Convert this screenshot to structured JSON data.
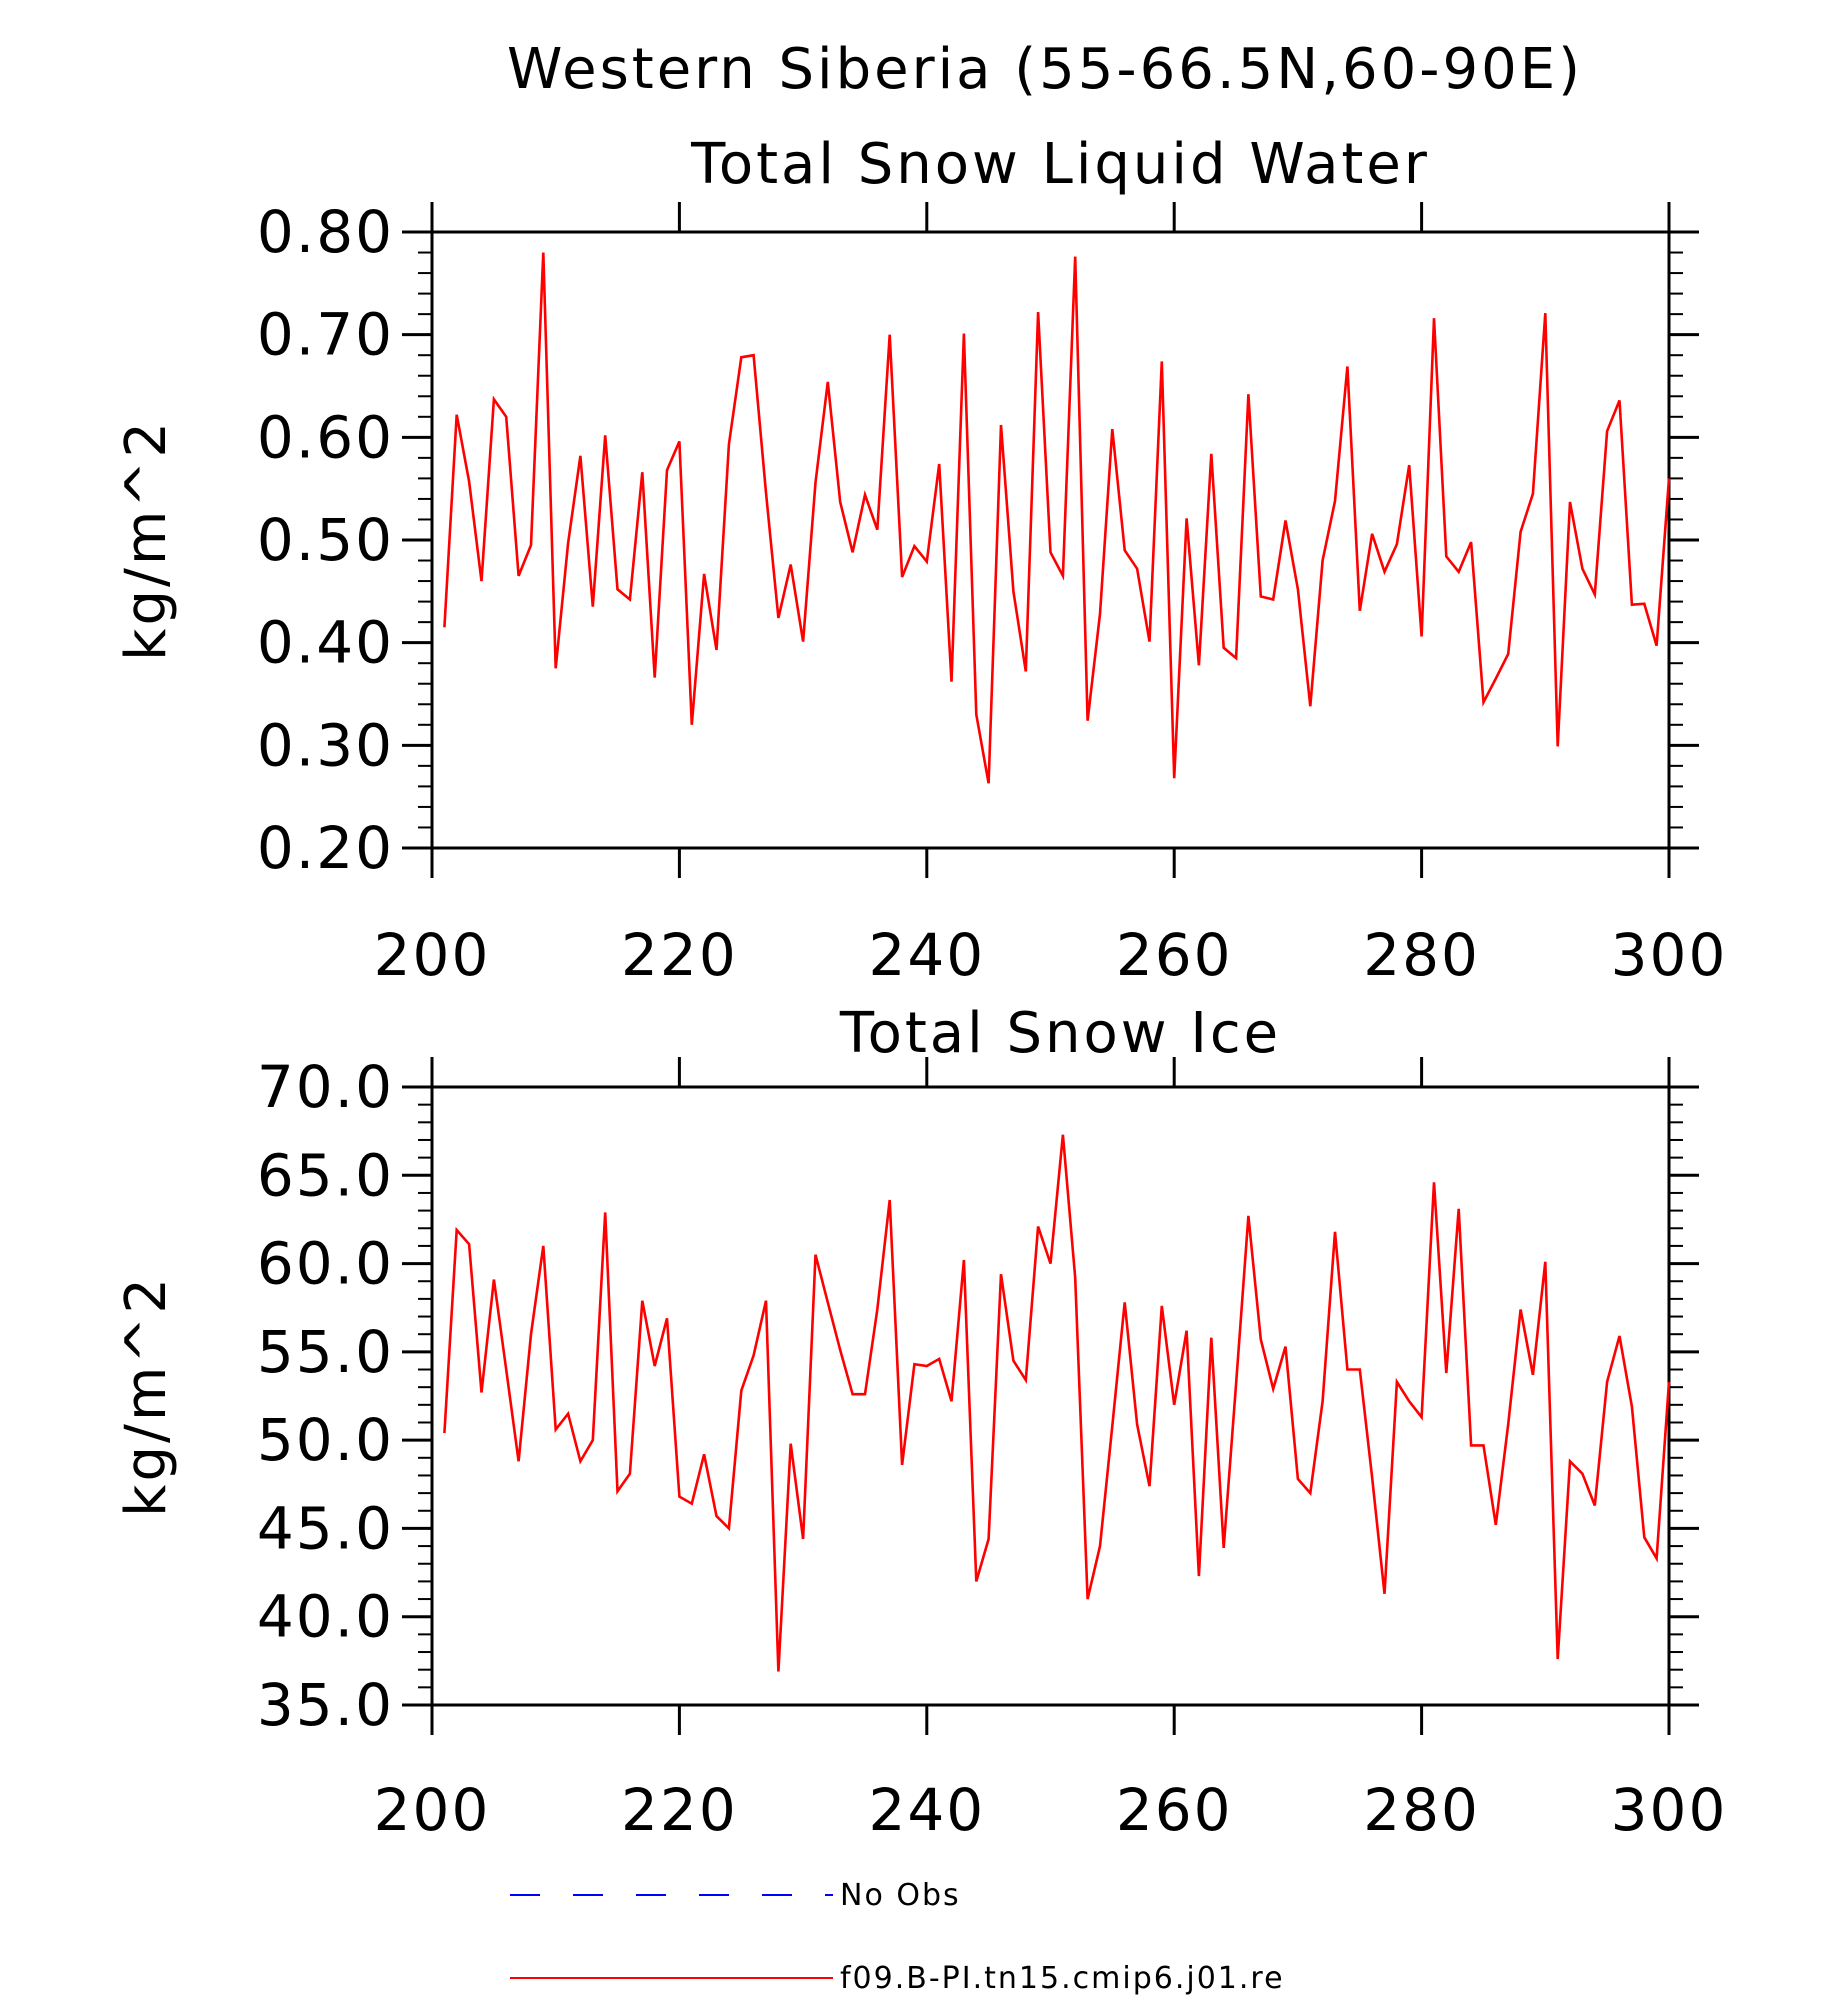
{
  "figure_title": "Western Siberia (55-66.5N,60-90E)",
  "chart_data": [
    {
      "type": "line",
      "title": "Total Snow Liquid Water",
      "xlabel": "",
      "ylabel": "kg/m^2",
      "xlim": [
        200,
        300
      ],
      "ylim": [
        0.2,
        0.8
      ],
      "x_ticks": [
        "200",
        "220",
        "240",
        "260",
        "280",
        "300"
      ],
      "y_ticks": [
        "0.20",
        "0.30",
        "0.40",
        "0.50",
        "0.60",
        "0.70",
        "0.80"
      ],
      "x_start": 201,
      "series": [
        {
          "name": "f09.B-PI.tn15.cmip6.j01.re",
          "color": "#ff0000",
          "values": [
            0.415,
            0.622,
            0.557,
            0.46,
            0.637,
            0.62,
            0.465,
            0.495,
            0.78,
            0.375,
            0.497,
            0.582,
            0.435,
            0.602,
            0.452,
            0.442,
            0.566,
            0.366,
            0.568,
            0.596,
            0.32,
            0.467,
            0.393,
            0.593,
            0.678,
            0.68,
            0.546,
            0.424,
            0.476,
            0.401,
            0.556,
            0.654,
            0.537,
            0.488,
            0.544,
            0.51,
            0.7,
            0.464,
            0.494,
            0.479,
            0.574,
            0.362,
            0.701,
            0.33,
            0.263,
            0.612,
            0.45,
            0.372,
            0.722,
            0.488,
            0.465,
            0.776,
            0.324,
            0.428,
            0.608,
            0.49,
            0.472,
            0.401,
            0.674,
            0.268,
            0.521,
            0.378,
            0.584,
            0.395,
            0.385,
            0.642,
            0.445,
            0.442,
            0.519,
            0.452,
            0.338,
            0.48,
            0.538,
            0.669,
            0.431,
            0.506,
            0.469,
            0.496,
            0.573,
            0.406,
            0.716,
            0.484,
            0.469,
            0.498,
            0.342,
            0.365,
            0.389,
            0.508,
            0.545,
            0.721,
            0.299,
            0.537,
            0.472,
            0.447,
            0.606,
            0.636,
            0.437,
            0.438,
            0.397,
            0.56
          ]
        }
      ]
    },
    {
      "type": "line",
      "title": "Total Snow Ice",
      "xlabel": "",
      "ylabel": "kg/m^2",
      "xlim": [
        200,
        300
      ],
      "ylim": [
        35.0,
        70.0
      ],
      "x_ticks": [
        "200",
        "220",
        "240",
        "260",
        "280",
        "300"
      ],
      "y_ticks": [
        "35.0",
        "40.0",
        "45.0",
        "50.0",
        "55.0",
        "60.0",
        "65.0",
        "70.0"
      ],
      "x_start": 201,
      "series": [
        {
          "name": "f09.B-PI.tn15.cmip6.j01.re",
          "color": "#ff0000",
          "values": [
            50.4,
            61.9,
            61.1,
            52.7,
            59.1,
            54.0,
            48.8,
            56.0,
            61.0,
            50.6,
            51.5,
            48.8,
            50.0,
            62.9,
            47.1,
            48.1,
            57.9,
            54.2,
            56.9,
            46.8,
            46.4,
            49.2,
            45.7,
            45.0,
            52.8,
            54.8,
            57.9,
            36.9,
            49.8,
            44.4,
            60.5,
            57.8,
            55.1,
            52.6,
            52.6,
            57.4,
            63.6,
            48.6,
            54.3,
            54.2,
            54.6,
            52.2,
            60.2,
            42.0,
            44.4,
            59.4,
            54.5,
            53.4,
            62.1,
            60.0,
            67.3,
            59.2,
            41.0,
            44.0,
            50.8,
            57.8,
            50.9,
            47.4,
            57.6,
            52.0,
            56.2,
            42.3,
            55.8,
            43.9,
            53.2,
            62.7,
            55.7,
            52.9,
            55.3,
            47.8,
            47.0,
            52.2,
            61.8,
            54.0,
            54.0,
            47.9,
            41.3,
            53.3,
            52.2,
            51.3,
            64.6,
            53.8,
            63.1,
            49.7,
            49.7,
            45.2,
            50.9,
            57.4,
            53.7,
            60.1,
            37.6,
            48.8,
            48.1,
            46.3,
            53.3,
            55.9,
            51.9,
            44.5,
            43.3,
            53.3
          ]
        }
      ]
    }
  ],
  "legend": [
    {
      "label": "No Obs",
      "color": "#0000ff",
      "dashed": true
    },
    {
      "label": "f09.B-PI.tn15.cmip6.j01.re",
      "color": "#ff0000",
      "dashed": false
    }
  ]
}
